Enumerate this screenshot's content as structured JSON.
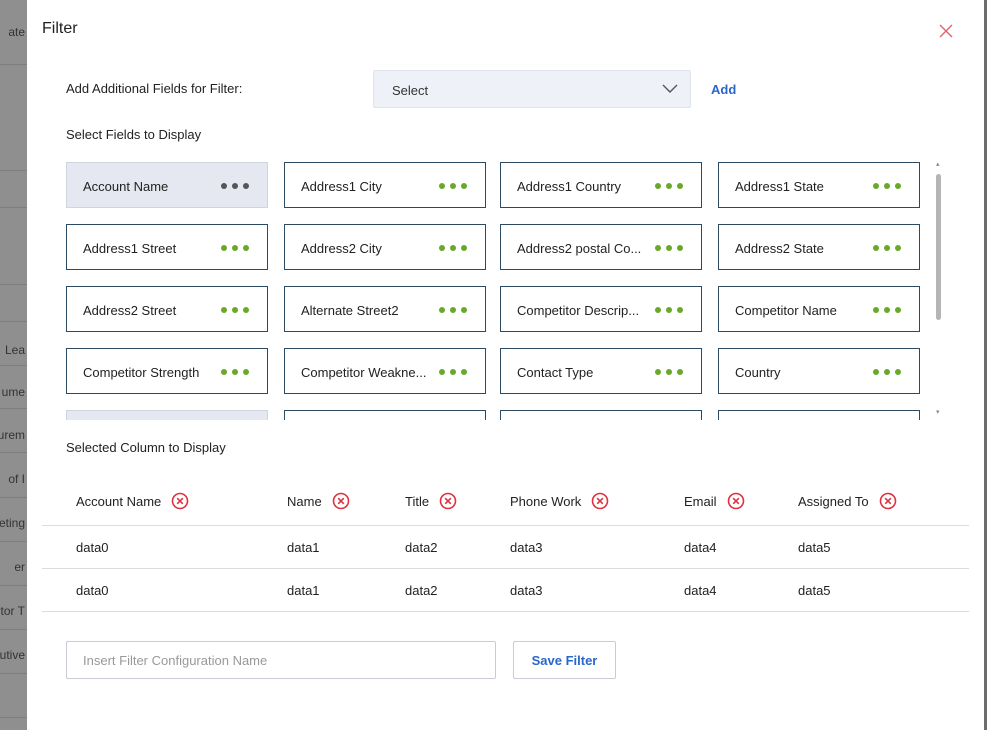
{
  "background": {
    "labels": [
      "ate",
      "Lea",
      "ume",
      "urem",
      "of I",
      "eting",
      "er",
      "tor T",
      "utive"
    ]
  },
  "modal": {
    "title": "Filter",
    "close_icon": "close-icon",
    "accent_color": "#2b66c9",
    "dot_color": "#6aa82a"
  },
  "additional_fields": {
    "label": "Add Additional Fields for Filter:",
    "select_value": "Select",
    "add_label": "Add"
  },
  "fields_section": {
    "label": "Select Fields to Display",
    "fields": [
      {
        "label": "Account Name",
        "selected": true
      },
      {
        "label": "Address1 City",
        "selected": false
      },
      {
        "label": "Address1 Country",
        "selected": false
      },
      {
        "label": "Address1 State",
        "selected": false
      },
      {
        "label": "Address1 Street",
        "selected": false
      },
      {
        "label": "Address2 City",
        "selected": false
      },
      {
        "label": "Address2 postal Co...",
        "selected": false
      },
      {
        "label": "Address2 State",
        "selected": false
      },
      {
        "label": "Address2 Street",
        "selected": false
      },
      {
        "label": "Alternate Street2",
        "selected": false
      },
      {
        "label": "Competitor Descrip...",
        "selected": false
      },
      {
        "label": "Competitor Name",
        "selected": false
      },
      {
        "label": "Competitor Strength",
        "selected": false
      },
      {
        "label": "Competitor Weakne...",
        "selected": false
      },
      {
        "label": "Contact Type",
        "selected": false
      },
      {
        "label": "Country",
        "selected": false
      },
      {
        "label": "",
        "selected": true
      },
      {
        "label": "",
        "selected": false
      },
      {
        "label": "",
        "selected": false
      },
      {
        "label": "",
        "selected": false
      }
    ]
  },
  "selected_columns": {
    "label": "Selected Column to Display",
    "columns": [
      "Account Name",
      "Name",
      "Title",
      "Phone Work",
      "Email",
      "Assigned To"
    ],
    "rows": [
      [
        "data0",
        "data1",
        "data2",
        "data3",
        "data4",
        "data5"
      ],
      [
        "data0",
        "data1",
        "data2",
        "data3",
        "data4",
        "data5"
      ]
    ]
  },
  "footer": {
    "name_placeholder": "Insert Filter Configuration Name",
    "name_value": "",
    "save_label": "Save Filter"
  }
}
